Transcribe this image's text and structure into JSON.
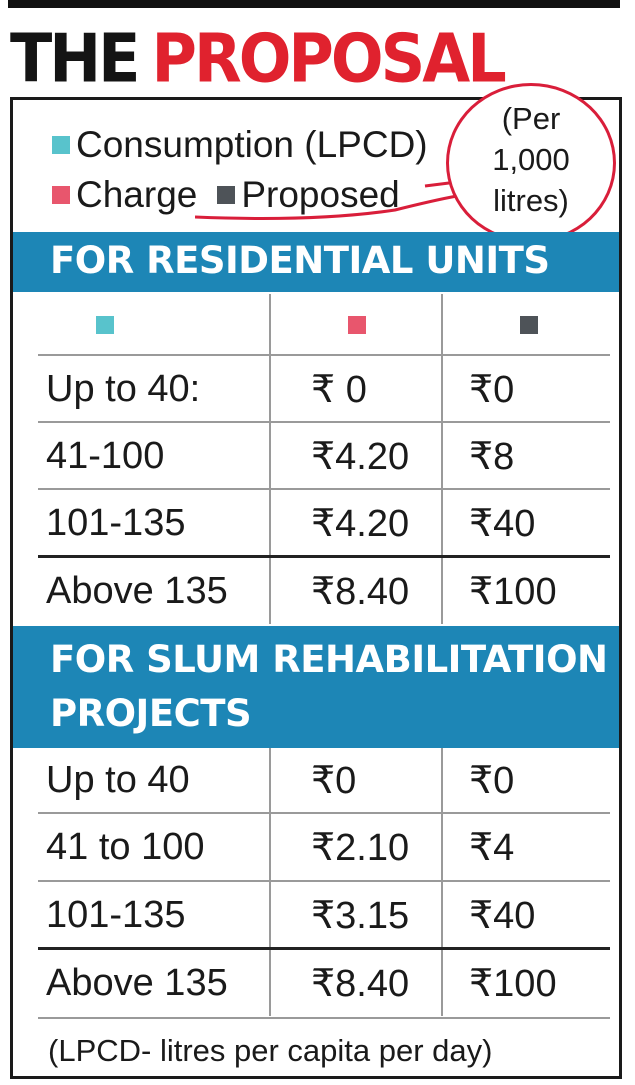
{
  "title": {
    "word1": "THE",
    "word2": "PROPOSAL"
  },
  "legend": {
    "consumption": "Consumption (LPCD)",
    "charge": "Charge",
    "proposed": "Proposed",
    "unit_note": "(Per\n1,000\nlitres)"
  },
  "colors": {
    "consumption": "#58c3cc",
    "charge": "#e8566d",
    "proposed": "#4e5358",
    "band": "#1d86b6",
    "accent": "#e0222e"
  },
  "sections": [
    {
      "heading": "FOR RESIDENTIAL UNITS",
      "rows": [
        {
          "consumption": "Up to 40:",
          "charge": "₹ 0",
          "proposed": "₹0"
        },
        {
          "consumption": "41-100",
          "charge": "₹4.20",
          "proposed": "₹8"
        },
        {
          "consumption": "101-135",
          "charge": "₹4.20",
          "proposed": "₹40"
        },
        {
          "consumption": "Above 135",
          "charge": "₹8.40",
          "proposed": "₹100"
        }
      ]
    },
    {
      "heading": "FOR SLUM REHABILITATION\nPROJECTS",
      "rows": [
        {
          "consumption": "Up to 40",
          "charge": "₹0",
          "proposed": "₹0"
        },
        {
          "consumption": "41 to 100",
          "charge": "₹2.10",
          "proposed": "₹4"
        },
        {
          "consumption": "101-135",
          "charge": "₹3.15",
          "proposed": "₹40"
        },
        {
          "consumption": "Above 135",
          "charge": "₹8.40",
          "proposed": "₹100"
        }
      ]
    }
  ],
  "footnote": "(LPCD- litres per capita per day)"
}
